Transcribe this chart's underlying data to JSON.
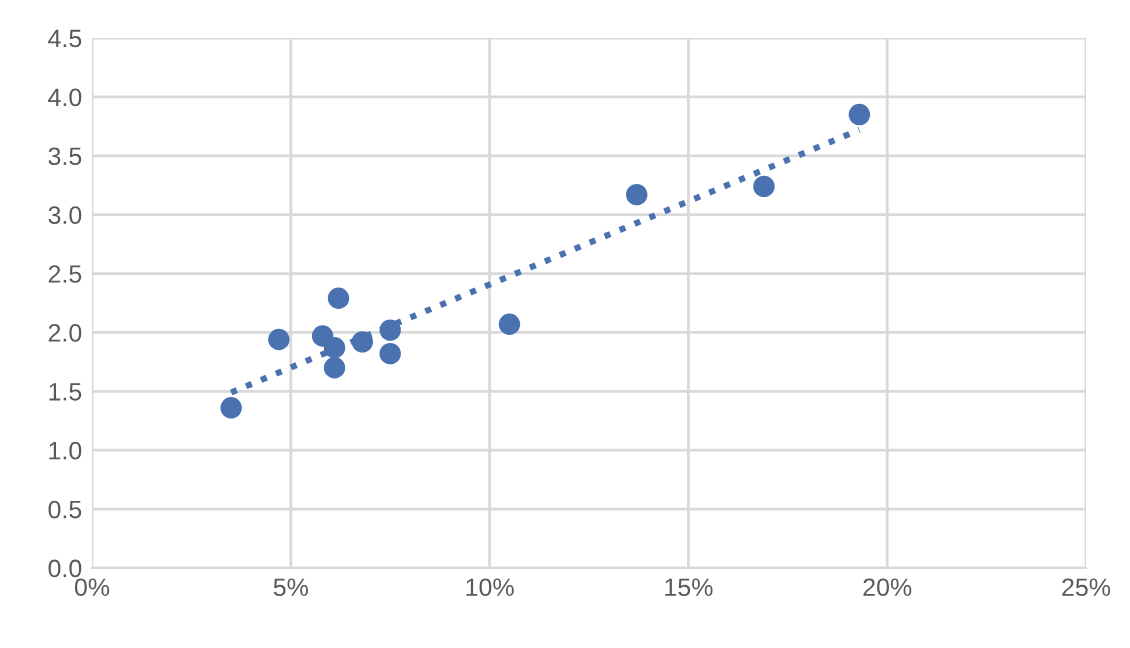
{
  "chart_data": {
    "type": "scatter",
    "xlim": [
      0,
      25
    ],
    "ylim": [
      0,
      4.5
    ],
    "xticks": [
      {
        "value": 0,
        "label": "0%"
      },
      {
        "value": 5,
        "label": "5%"
      },
      {
        "value": 10,
        "label": "10%"
      },
      {
        "value": 15,
        "label": "15%"
      },
      {
        "value": 20,
        "label": "20%"
      },
      {
        "value": 25,
        "label": "25%"
      }
    ],
    "yticks": [
      {
        "value": 0,
        "label": "0.0"
      },
      {
        "value": 0.5,
        "label": "0.5"
      },
      {
        "value": 1,
        "label": "1.0"
      },
      {
        "value": 1.5,
        "label": "1.5"
      },
      {
        "value": 2,
        "label": "2.0"
      },
      {
        "value": 2.5,
        "label": "2.5"
      },
      {
        "value": 3,
        "label": "3.0"
      },
      {
        "value": 3.5,
        "label": "3.5"
      },
      {
        "value": 4,
        "label": "4.0"
      },
      {
        "value": 4.5,
        "label": "4.5"
      }
    ],
    "grid": true,
    "legend": false,
    "series": [
      {
        "color": "#4a72b0",
        "marker": "circle",
        "x": [
          3.5,
          4.7,
          5.8,
          6.1,
          6.1,
          6.2,
          6.8,
          7.5,
          7.5,
          10.5,
          13.7,
          16.9,
          19.3
        ],
        "values": [
          1.36,
          1.94,
          1.97,
          1.87,
          1.7,
          2.29,
          1.92,
          2.02,
          1.82,
          2.07,
          3.17,
          3.24,
          3.85
        ]
      },
      {
        "type": "line",
        "color": "#4a72b0",
        "line_style": "dotted",
        "marker": "none",
        "x": [
          3.5,
          19.3
        ],
        "values": [
          1.49,
          3.72
        ]
      }
    ]
  }
}
